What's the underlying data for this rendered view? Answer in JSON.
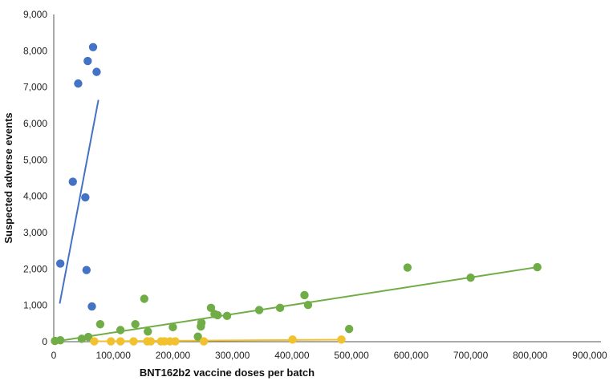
{
  "chart_data": {
    "type": "scatter",
    "title": "",
    "xlabel": "BNT162b2 vaccine doses per batch",
    "ylabel": "Suspected adverse events",
    "xlim": [
      0,
      900000
    ],
    "ylim": [
      0,
      9000
    ],
    "x_ticks": [
      "0",
      "100,000",
      "200,000",
      "300,000",
      "400,000",
      "500,000",
      "600,000",
      "700,000",
      "800,000",
      "900,000"
    ],
    "y_ticks": [
      "0",
      "1,000",
      "2,000",
      "3,000",
      "4,000",
      "5,000",
      "6,000",
      "7,000",
      "8,000",
      "9,000"
    ],
    "x_tick_values": [
      0,
      100000,
      200000,
      300000,
      400000,
      500000,
      600000,
      700000,
      800000,
      900000
    ],
    "y_tick_values": [
      0,
      1000,
      2000,
      3000,
      4000,
      5000,
      6000,
      7000,
      8000,
      9000
    ],
    "grid": false,
    "legend": "none",
    "series": [
      {
        "color": "#4472C4",
        "points": [
          [
            11000,
            2150
          ],
          [
            32000,
            4400
          ],
          [
            41000,
            7100
          ],
          [
            53000,
            3970
          ],
          [
            55000,
            1970
          ],
          [
            57000,
            7720
          ],
          [
            64000,
            970
          ],
          [
            66000,
            8100
          ],
          [
            72000,
            7420
          ]
        ],
        "trendline": [
          [
            10000,
            1050
          ],
          [
            75000,
            6650
          ]
        ]
      },
      {
        "color": "#70AD47",
        "points": [
          [
            2000,
            20
          ],
          [
            11000,
            40
          ],
          [
            47000,
            80
          ],
          [
            58000,
            130
          ],
          [
            78000,
            480
          ],
          [
            112000,
            320
          ],
          [
            137000,
            480
          ],
          [
            152000,
            1180
          ],
          [
            158000,
            280
          ],
          [
            200000,
            400
          ],
          [
            242000,
            140
          ],
          [
            247000,
            420
          ],
          [
            248000,
            520
          ],
          [
            264000,
            930
          ],
          [
            270000,
            760
          ],
          [
            275000,
            730
          ],
          [
            291000,
            710
          ],
          [
            345000,
            870
          ],
          [
            380000,
            930
          ],
          [
            421000,
            1280
          ],
          [
            427000,
            1010
          ],
          [
            496000,
            350
          ],
          [
            594000,
            2040
          ],
          [
            700000,
            1760
          ],
          [
            812000,
            2050
          ]
        ],
        "trendline": [
          [
            0,
            0
          ],
          [
            812000,
            2050
          ]
        ]
      },
      {
        "color": "#F2C12E",
        "points": [
          [
            68000,
            10
          ],
          [
            96000,
            10
          ],
          [
            112000,
            10
          ],
          [
            134000,
            10
          ],
          [
            157000,
            10
          ],
          [
            163000,
            10
          ],
          [
            180000,
            10
          ],
          [
            186000,
            10
          ],
          [
            195000,
            10
          ],
          [
            204000,
            10
          ],
          [
            252000,
            10
          ],
          [
            401000,
            60
          ],
          [
            483000,
            60
          ]
        ],
        "trendline": [
          [
            68000,
            10
          ],
          [
            483000,
            55
          ]
        ]
      }
    ]
  }
}
